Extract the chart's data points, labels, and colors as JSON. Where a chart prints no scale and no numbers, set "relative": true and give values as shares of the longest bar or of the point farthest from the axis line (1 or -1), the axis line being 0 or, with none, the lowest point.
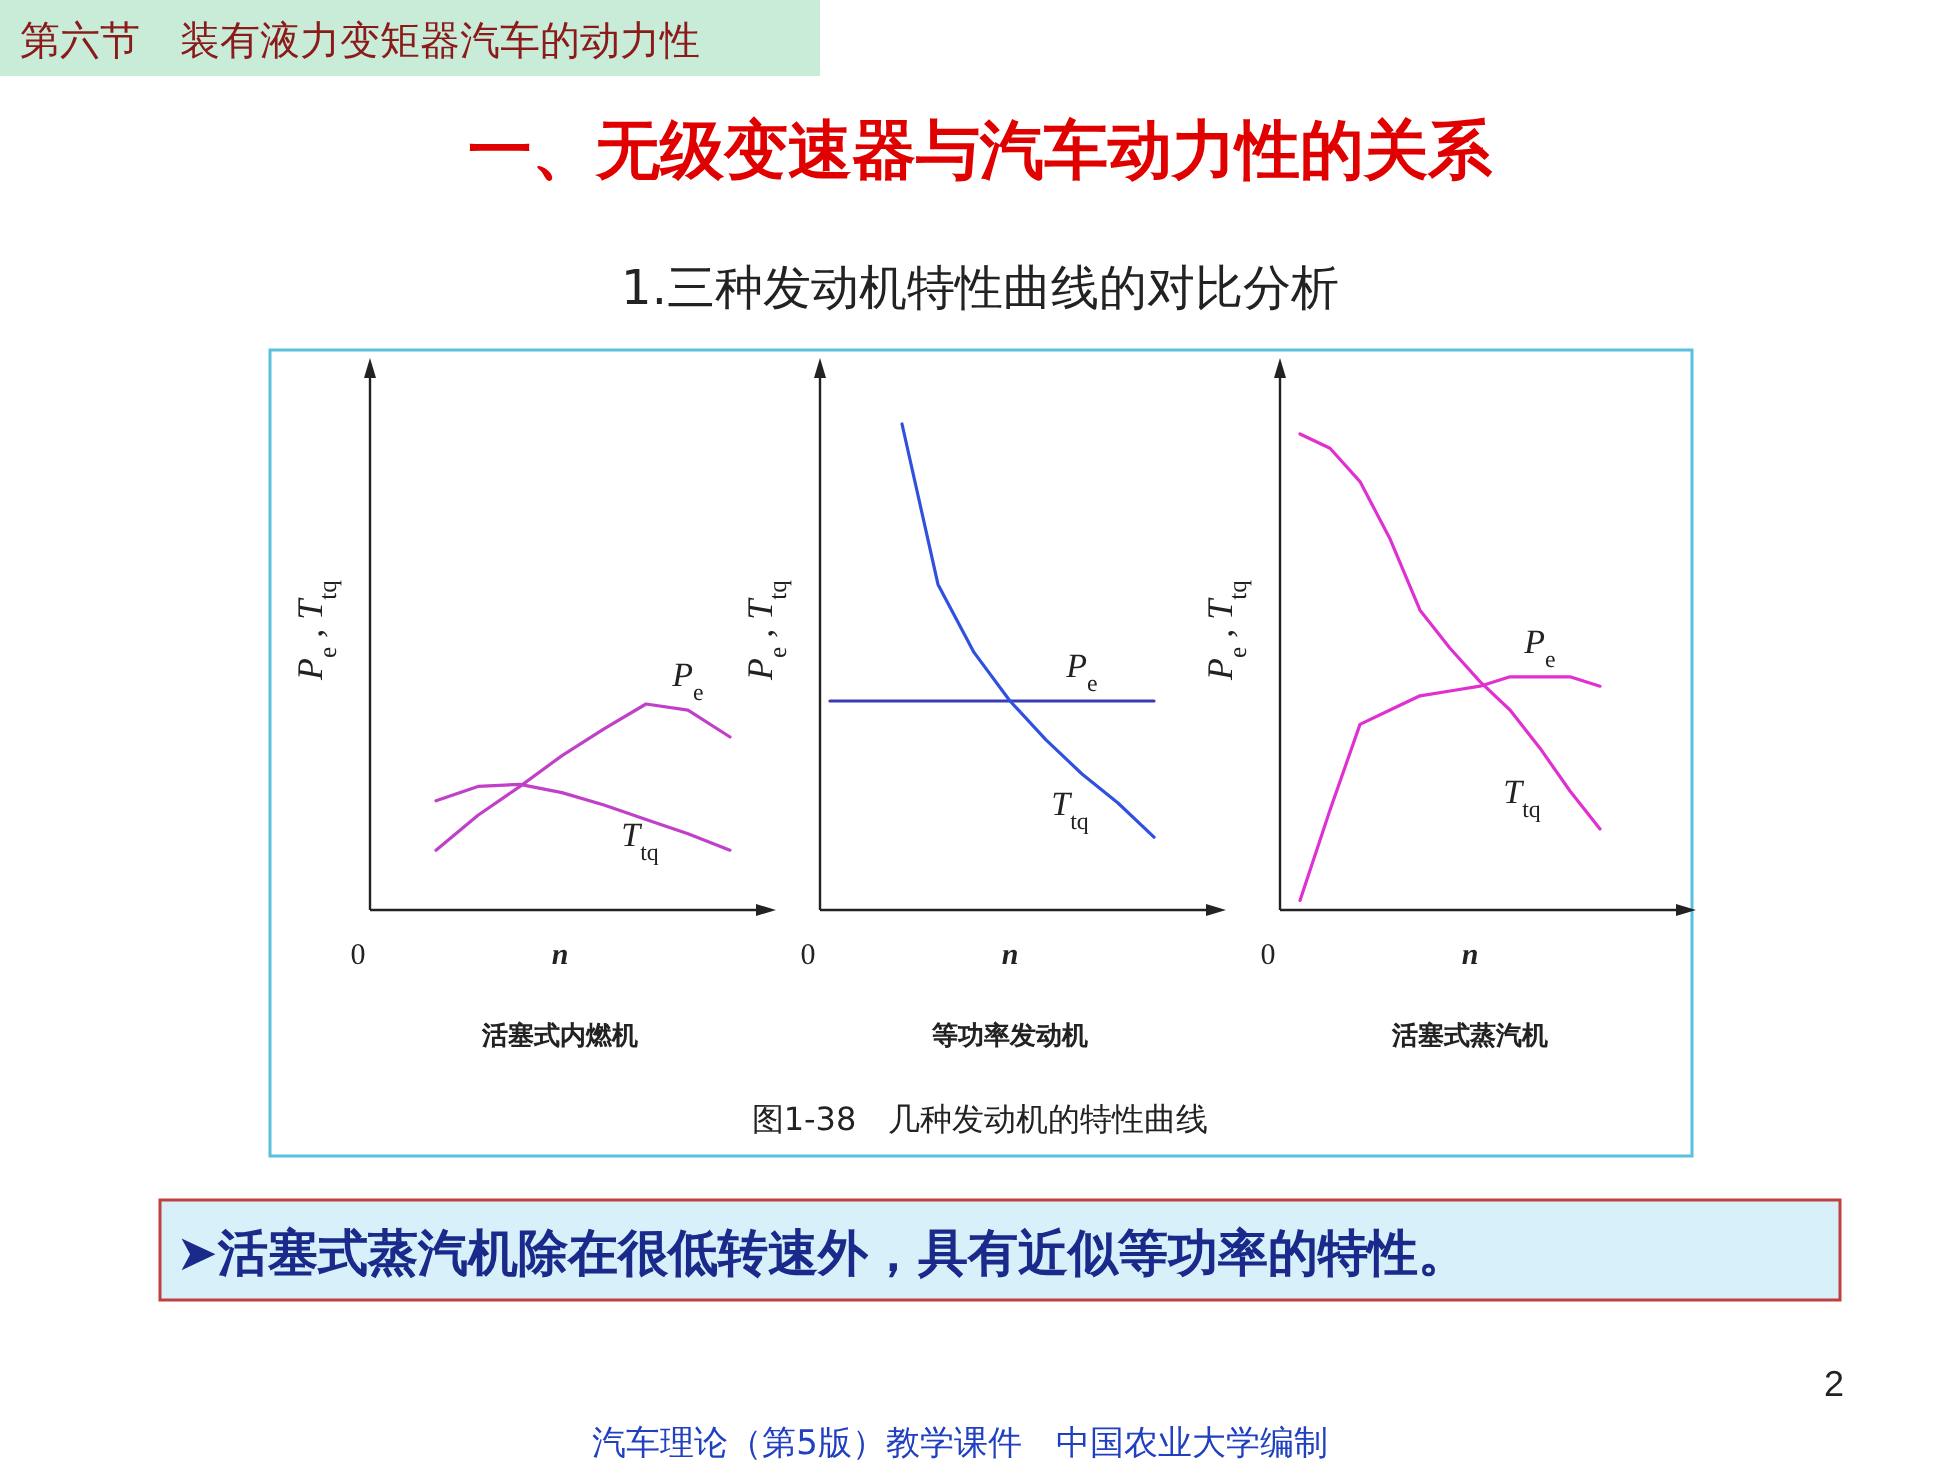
{
  "chart_data": [
    {
      "type": "line",
      "relative": true,
      "title": "一、无级变速器与汽车动力性的关系",
      "subtitle": "1.三种发动机特性曲线的对比分析",
      "xlabel": "n",
      "ylabel": "P$_{e}$ , T$_{tq}$",
      "categories": [
        null,
        null,
        null,
        null,
        null,
        null,
        null,
        null
      ],
      "series": [
        {
          "name": "P$_{e}$",
          "color": "#c040c8",
          "values": [
            0.29,
            0.46,
            0.6,
            0.75,
            0.88,
            1.0,
            0.97,
            0.84
          ]
        },
        {
          "name": "T$_{tq}$",
          "color": "#c040c8",
          "values": [
            0.53,
            0.6,
            0.61,
            0.57,
            0.51,
            0.44,
            0.37,
            0.29
          ]
        }
      ],
      "annotations": [
        "0",
        "活塞式内燃机",
        "第六节　装有液力变矩器汽车的动力性",
        "图1-38　几种发动机的特性曲线",
        "➤活塞式蒸汽机除在很低转速外，具有近似等功率的特性。",
        "2",
        "汽车理论（第5版）教学课件　中国农业大学编制"
      ]
    },
    {
      "type": "line",
      "relative": true,
      "xlabel": "n",
      "ylabel": "P$_{e}$ , T$_{tq}$",
      "categories": [
        null,
        null,
        null,
        null,
        null,
        null,
        null,
        null,
        null,
        null
      ],
      "series": [
        {
          "name": "P$_{e}$",
          "color": "#3a3ab8",
          "values": [
            0.43,
            0.43,
            0.43,
            0.43,
            0.43,
            0.43,
            0.43,
            0.43,
            0.43,
            0.43
          ]
        },
        {
          "name": "T$_{tq}$",
          "color": "#3050e0",
          "values": [
            null,
            null,
            1.0,
            0.67,
            0.53,
            0.43,
            0.35,
            0.28,
            0.22,
            0.15
          ]
        }
      ],
      "annotations": [
        "0",
        "等功率发动机"
      ]
    },
    {
      "type": "line",
      "relative": true,
      "xlabel": "n",
      "ylabel": "P$_{e}$ , T$_{tq}$",
      "categories": [
        null,
        null,
        null,
        null,
        null,
        null,
        null,
        null,
        null,
        null,
        null
      ],
      "series": [
        {
          "name": "P$_{e}$",
          "color": "#e030d0",
          "values": [
            0.02,
            0.21,
            0.39,
            0.42,
            0.45,
            0.46,
            0.47,
            0.49,
            0.49,
            0.49,
            0.47
          ]
        },
        {
          "name": "T$_{tq}$",
          "color": "#e030d0",
          "values": [
            1.0,
            0.97,
            0.9,
            0.78,
            0.63,
            0.55,
            0.48,
            0.42,
            0.34,
            0.25,
            0.17
          ]
        }
      ],
      "annotations": [
        "0",
        "活塞式蒸汽机"
      ]
    }
  ]
}
